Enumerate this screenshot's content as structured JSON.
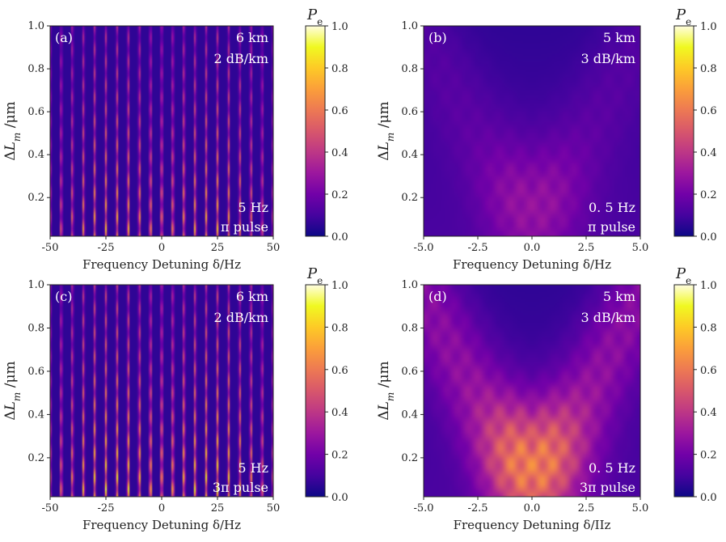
{
  "colormap": {
    "name": "plasma",
    "stops": [
      "#0d0887",
      "#46039f",
      "#7201a8",
      "#9c179e",
      "#bd3786",
      "#d8576b",
      "#ed7953",
      "#fb9f3a",
      "#fdca26",
      "#f0f921",
      "#fffde0"
    ]
  },
  "chart_data": [
    {
      "panel": "(a)",
      "type": "heatmap",
      "xlabel": "Frequency Detuning δ/Hz",
      "ylabel": "ΔL_m /μm",
      "xlim": [
        -50,
        50
      ],
      "ylim": [
        0.02,
        1.0
      ],
      "xticks": [
        "-50",
        "-25",
        "0",
        "25",
        "50"
      ],
      "yticks": [
        "0.2",
        "0.4",
        "0.6",
        "0.8",
        "1.0"
      ],
      "annotations": {
        "distance": "6 km",
        "loss": "2 dB/km",
        "frequency": "5 Hz",
        "pulse": "π  pulse"
      },
      "pattern": "fringes",
      "fringe_spacing_hz": 5,
      "peak_intensity": 0.85,
      "colorbar": {
        "title": "P",
        "subscript": "e",
        "ticks": [
          "0.0",
          "0.2",
          "0.4",
          "0.6",
          "0.8",
          "1.0"
        ],
        "range": [
          0,
          1
        ]
      }
    },
    {
      "panel": "(b)",
      "type": "heatmap",
      "xlabel": "Frequency Detuning δ/Hz",
      "ylabel": "ΔL_m /μm",
      "xlim": [
        -5,
        5
      ],
      "ylim": [
        0.02,
        1.0
      ],
      "xticks": [
        "-5.0",
        "-2.5",
        "0.0",
        "2.5",
        "5.0"
      ],
      "yticks": [
        "0.2",
        "0.4",
        "0.6",
        "0.8",
        "1.0"
      ],
      "annotations": {
        "distance": "5 km",
        "loss": "3 dB/km",
        "frequency": "0. 5 Hz",
        "pulse": "π  pulse"
      },
      "pattern": "diffuse",
      "peak_intensity": 0.22,
      "colorbar": {
        "title": "P",
        "subscript": "e",
        "ticks": [
          "0.0",
          "0.2",
          "0.4",
          "0.6",
          "0.8",
          "1.0"
        ],
        "range": [
          0,
          1
        ]
      }
    },
    {
      "panel": "(c)",
      "type": "heatmap",
      "xlabel": "Frequency Detuning δ/Hz",
      "ylabel": "ΔL_m /μm",
      "xlim": [
        -50,
        50
      ],
      "ylim": [
        0.02,
        1.0
      ],
      "xticks": [
        "-50",
        "-25",
        "0",
        "25",
        "50"
      ],
      "yticks": [
        "0.2",
        "0.4",
        "0.6",
        "0.8",
        "1.0"
      ],
      "annotations": {
        "distance": "6 km",
        "loss": "2 dB/km",
        "frequency": "5 Hz",
        "pulse": "3π  pulse"
      },
      "pattern": "fringes",
      "fringe_spacing_hz": 5,
      "peak_intensity": 1.0,
      "colorbar": {
        "title": "P",
        "subscript": "e",
        "ticks": [
          "0.0",
          "0.2",
          "0.4",
          "0.6",
          "0.8",
          "1.0"
        ],
        "range": [
          0,
          1
        ]
      }
    },
    {
      "panel": "(d)",
      "type": "heatmap",
      "xlabel": "Frequency Detuning δ/IIz",
      "ylabel": "ΔL_m /μm",
      "xlim": [
        -5,
        5
      ],
      "ylim": [
        0.02,
        1.0
      ],
      "xticks": [
        "-5.0",
        "-2.5",
        "0.0",
        "2.5",
        "5.0"
      ],
      "yticks": [
        "0.2",
        "0.4",
        "0.6",
        "0.8",
        "1.0"
      ],
      "annotations": {
        "distance": "5 km",
        "loss": "3 dB/km",
        "frequency": "0. 5 Hz",
        "pulse": "3π  pulse"
      },
      "pattern": "diffuse",
      "peak_intensity": 0.62,
      "colorbar": {
        "title": "P",
        "subscript": "e",
        "ticks": [
          "0.0",
          "0.2",
          "0.4",
          "0.6",
          "0.8",
          "1.0"
        ],
        "range": [
          0,
          1
        ]
      }
    }
  ]
}
